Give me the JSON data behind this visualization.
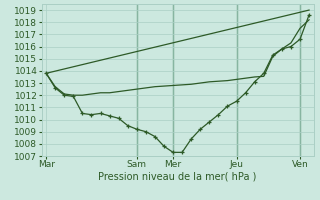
{
  "xlabel": "Pression niveau de la mer( hPa )",
  "bg_color": "#cce8df",
  "grid_color": "#aacfc5",
  "line_color": "#2d5a27",
  "vline_color": "#3a7a50",
  "ylim": [
    1007,
    1019.5
  ],
  "yticks": [
    1007,
    1008,
    1009,
    1010,
    1011,
    1012,
    1013,
    1014,
    1015,
    1016,
    1017,
    1018,
    1019
  ],
  "xtick_labels": [
    "Mar",
    "Sam",
    "Mer",
    "Jeu",
    "Ven"
  ],
  "xtick_positions": [
    0,
    10,
    14,
    21,
    28
  ],
  "xlim": [
    -0.5,
    29.5
  ],
  "line1_x": [
    0,
    1,
    2,
    3,
    4,
    5,
    6,
    7,
    8,
    9,
    10,
    11,
    12,
    13,
    14,
    15,
    16,
    17,
    18,
    19,
    20,
    21,
    22,
    23,
    24,
    25,
    26,
    27,
    28,
    29
  ],
  "line1_y": [
    1013.8,
    1012.6,
    1012.0,
    1011.9,
    1010.5,
    1010.4,
    1010.5,
    1010.3,
    1010.1,
    1009.5,
    1009.2,
    1009.0,
    1008.6,
    1007.8,
    1007.3,
    1007.3,
    1008.4,
    1009.2,
    1009.8,
    1010.4,
    1011.1,
    1011.5,
    1012.2,
    1013.1,
    1013.8,
    1015.3,
    1015.8,
    1016.0,
    1016.6,
    1018.6
  ],
  "line2_x": [
    0,
    29
  ],
  "line2_y": [
    1013.8,
    1019.0
  ],
  "line3_x": [
    0,
    1,
    2,
    3,
    4,
    5,
    6,
    7,
    8,
    9,
    10,
    11,
    12,
    13,
    14,
    15,
    16,
    17,
    18,
    19,
    20,
    21,
    22,
    23,
    24,
    25,
    26,
    27,
    28,
    29
  ],
  "line3_y": [
    1013.8,
    1012.7,
    1012.1,
    1012.0,
    1012.0,
    1012.1,
    1012.2,
    1012.2,
    1012.3,
    1012.4,
    1012.5,
    1012.6,
    1012.7,
    1012.75,
    1012.8,
    1012.85,
    1012.9,
    1013.0,
    1013.1,
    1013.15,
    1013.2,
    1013.3,
    1013.4,
    1013.5,
    1013.55,
    1015.2,
    1015.8,
    1016.3,
    1017.5,
    1018.2
  ]
}
